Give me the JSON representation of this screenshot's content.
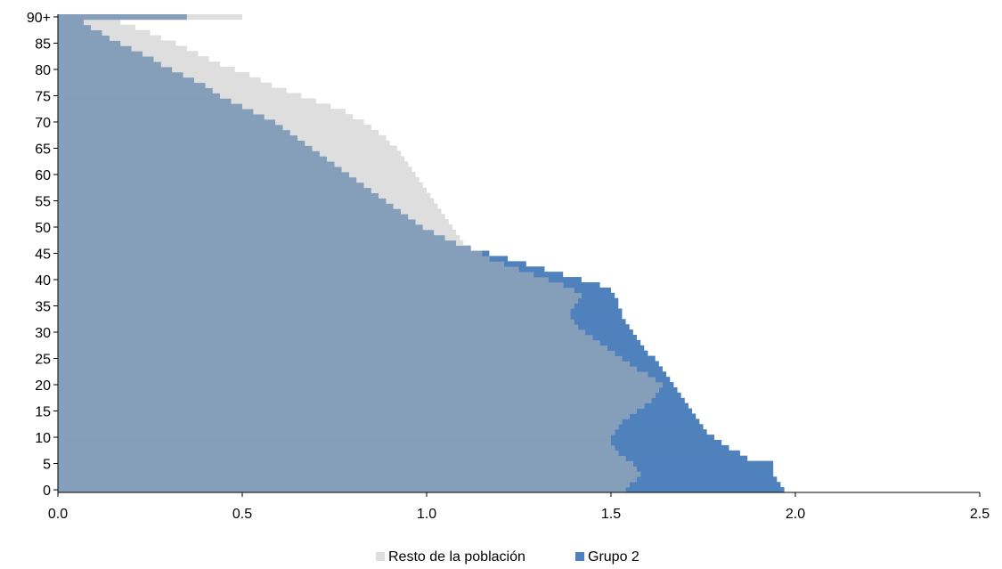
{
  "chart_data": {
    "type": "area",
    "orientation": "horizontal",
    "y_categories": [
      "0",
      "1",
      "2",
      "3",
      "4",
      "5",
      "6",
      "7",
      "8",
      "9",
      "10",
      "11",
      "12",
      "13",
      "14",
      "15",
      "16",
      "17",
      "18",
      "19",
      "20",
      "21",
      "22",
      "23",
      "24",
      "25",
      "26",
      "27",
      "28",
      "29",
      "30",
      "31",
      "32",
      "33",
      "34",
      "35",
      "36",
      "37",
      "38",
      "39",
      "40",
      "41",
      "42",
      "43",
      "44",
      "45",
      "46",
      "47",
      "48",
      "49",
      "50",
      "51",
      "52",
      "53",
      "54",
      "55",
      "56",
      "57",
      "58",
      "59",
      "60",
      "61",
      "62",
      "63",
      "64",
      "65",
      "66",
      "67",
      "68",
      "69",
      "70",
      "71",
      "72",
      "73",
      "74",
      "75",
      "76",
      "77",
      "78",
      "79",
      "80",
      "81",
      "82",
      "83",
      "84",
      "85",
      "86",
      "87",
      "88",
      "89",
      "90+"
    ],
    "y_tick_labels": [
      "0",
      "5",
      "10",
      "15",
      "20",
      "25",
      "30",
      "35",
      "40",
      "45",
      "50",
      "55",
      "60",
      "65",
      "70",
      "75",
      "80",
      "85",
      "90+"
    ],
    "x_ticks": [
      0.0,
      0.5,
      1.0,
      1.5,
      2.0,
      2.5
    ],
    "x_tick_labels": [
      "0.0",
      "0.5",
      "1.0",
      "1.5",
      "2.0",
      "2.5"
    ],
    "xlim": [
      0,
      2.5
    ],
    "series": [
      {
        "name": "Resto de la población",
        "color": "#dedede",
        "values": [
          1.54,
          1.55,
          1.57,
          1.58,
          1.57,
          1.56,
          1.54,
          1.52,
          1.51,
          1.5,
          1.5,
          1.51,
          1.52,
          1.53,
          1.55,
          1.57,
          1.59,
          1.61,
          1.62,
          1.63,
          1.64,
          1.62,
          1.6,
          1.57,
          1.55,
          1.53,
          1.51,
          1.49,
          1.47,
          1.45,
          1.43,
          1.41,
          1.4,
          1.39,
          1.39,
          1.4,
          1.41,
          1.42,
          1.4,
          1.37,
          1.33,
          1.29,
          1.25,
          1.21,
          1.17,
          1.15,
          1.12,
          1.1,
          1.09,
          1.08,
          1.07,
          1.06,
          1.05,
          1.04,
          1.03,
          1.02,
          1.01,
          1.0,
          0.99,
          0.98,
          0.97,
          0.96,
          0.95,
          0.94,
          0.93,
          0.92,
          0.9,
          0.89,
          0.87,
          0.85,
          0.83,
          0.8,
          0.78,
          0.74,
          0.7,
          0.66,
          0.62,
          0.58,
          0.55,
          0.52,
          0.48,
          0.44,
          0.41,
          0.38,
          0.35,
          0.32,
          0.28,
          0.25,
          0.21,
          0.17,
          0.5
        ]
      },
      {
        "name": "Grupo 2",
        "color": "#4f81bd",
        "values": [
          1.97,
          1.96,
          1.95,
          1.94,
          1.94,
          1.94,
          1.87,
          1.85,
          1.82,
          1.8,
          1.78,
          1.76,
          1.75,
          1.74,
          1.73,
          1.72,
          1.71,
          1.7,
          1.69,
          1.68,
          1.67,
          1.66,
          1.65,
          1.64,
          1.63,
          1.62,
          1.6,
          1.59,
          1.58,
          1.57,
          1.56,
          1.55,
          1.54,
          1.53,
          1.53,
          1.52,
          1.52,
          1.51,
          1.5,
          1.47,
          1.42,
          1.37,
          1.32,
          1.27,
          1.22,
          1.17,
          1.12,
          1.08,
          1.05,
          1.02,
          0.99,
          0.97,
          0.95,
          0.93,
          0.91,
          0.89,
          0.87,
          0.85,
          0.83,
          0.81,
          0.79,
          0.77,
          0.75,
          0.73,
          0.71,
          0.69,
          0.67,
          0.65,
          0.63,
          0.61,
          0.59,
          0.56,
          0.53,
          0.5,
          0.47,
          0.44,
          0.42,
          0.4,
          0.37,
          0.34,
          0.31,
          0.28,
          0.26,
          0.23,
          0.2,
          0.17,
          0.14,
          0.12,
          0.09,
          0.07,
          0.35
        ]
      }
    ],
    "overlap_color": "#859fbb",
    "legend": {
      "position": "bottom",
      "items": [
        {
          "label": "Resto de la población",
          "color": "#dedede"
        },
        {
          "label": "Grupo 2",
          "color": "#4f81bd"
        }
      ]
    },
    "grid": false
  }
}
